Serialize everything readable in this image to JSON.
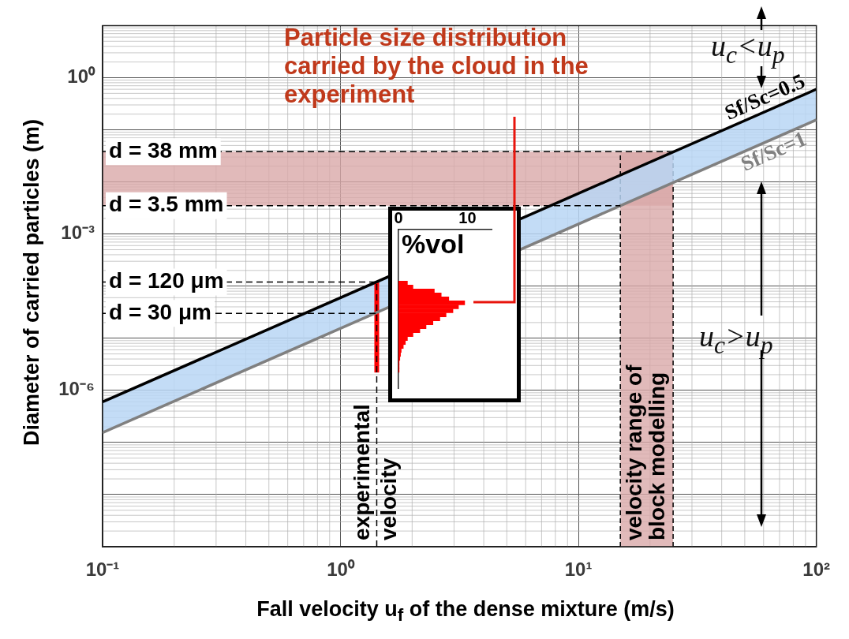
{
  "chart_data": [
    {
      "type": "line",
      "xlabel": "Fall velocity u$_{f}$ of the dense mixture (m/s)",
      "ylabel": "Diameter of carried particles (m)",
      "series": [
        {
          "name": "Sf/Sc=0.5",
          "color": "#000000",
          "x": [
            0.1,
            100
          ],
          "values": [
            6e-07,
            0.6
          ],
          "lower": [
            1.55e-07,
            0.155
          ],
          "upper": [
            6e-07,
            0.6
          ]
        },
        {
          "name": "Sf/Sc=1",
          "color": "#808080",
          "x": [
            0.1,
            100
          ],
          "values": [
            1.55e-07,
            0.155
          ]
        },
        {
          "color": "#ff0000",
          "x": [
            1.42,
            1.42
          ],
          "values": [
            2.2e-06,
            0.00012
          ]
        }
      ],
      "xlim": [
        0.1,
        100
      ],
      "ylim": [
        1e-09,
        10
      ],
      "xticks": [
        {
          "value": 0.1,
          "label": "10⁻¹"
        },
        {
          "value": 1,
          "label": "10⁰"
        },
        {
          "value": 10,
          "label": "10¹"
        },
        {
          "value": 100,
          "label": "10²"
        }
      ],
      "yticks": [
        {
          "value": 1e-09,
          "label": null
        },
        {
          "value": 1e-08,
          "label": null
        },
        {
          "value": 1e-07,
          "label": null
        },
        {
          "value": 1e-06,
          "label": "10⁻⁶"
        },
        {
          "value": 1e-05,
          "label": null
        },
        {
          "value": 0.0001,
          "label": null
        },
        {
          "value": 0.001,
          "label": "10⁻³"
        },
        {
          "value": 0.01,
          "label": null
        },
        {
          "value": 0.1,
          "label": null
        },
        {
          "value": 1,
          "label": "10⁰"
        },
        {
          "value": 10,
          "label": null
        }
      ],
      "log": "xy",
      "grid": true,
      "ref_lines": [
        {
          "axis": "y",
          "value": 0.038,
          "label": "d = 38 mm",
          "line_style": "dashed"
        },
        {
          "axis": "y",
          "value": 0.0035,
          "label": "d = 3.5 mm",
          "line_style": "dashed"
        },
        {
          "axis": "y",
          "value": 0.00012,
          "label": "d = 120 μm",
          "line_style": "dashed"
        },
        {
          "axis": "y",
          "value": 3e-05,
          "label": "d = 30 μm",
          "line_style": "dashed"
        },
        {
          "axis": "x",
          "value": 1.42,
          "label": "experimental velocity",
          "line_style": "dashed"
        }
      ],
      "bands": [
        {
          "axis": "y",
          "from": 0.0035,
          "to": 0.038,
          "color": "#d9a9a9"
        },
        {
          "axis": "x",
          "from": 15,
          "to": 25,
          "label": "velocity range of block modelling",
          "color": "#d9a9a9"
        }
      ],
      "annotations": [
        "Particle size distribution carried by the cloud in the experiment",
        "u$_{c}$<u$_{p}$",
        "u$_{c}$>u$_{p}$"
      ]
    },
    {
      "type": "bar",
      "orientation": "horizontal",
      "xlabel": "%vol",
      "color": "#ff0000",
      "categories": [
        null,
        null,
        null,
        null,
        null,
        null,
        null,
        null,
        null,
        null,
        null,
        null,
        null,
        null,
        null,
        null,
        null,
        null,
        null,
        null,
        null,
        null,
        null,
        null,
        null,
        null,
        null,
        null,
        null,
        null,
        null,
        null,
        null,
        null,
        null,
        null,
        null,
        null,
        null,
        null
      ],
      "values": [
        null,
        null,
        null,
        null,
        null,
        null,
        null,
        null,
        null,
        null,
        null,
        null,
        null,
        1.3,
        2.1,
        5.2,
        6.2,
        7.3,
        9.6,
        8.7,
        7.9,
        6.9,
        6.0,
        5.0,
        4.0,
        3.1,
        2.1,
        1.3,
        1.0,
        0.7,
        0.4,
        0.3,
        0.2,
        0.1,
        0.1,
        0.1,
        null,
        null,
        null,
        null
      ],
      "xlim": [
        0,
        13.5
      ],
      "xticks": [
        0,
        10
      ],
      "tick_labels": "x"
    }
  ]
}
